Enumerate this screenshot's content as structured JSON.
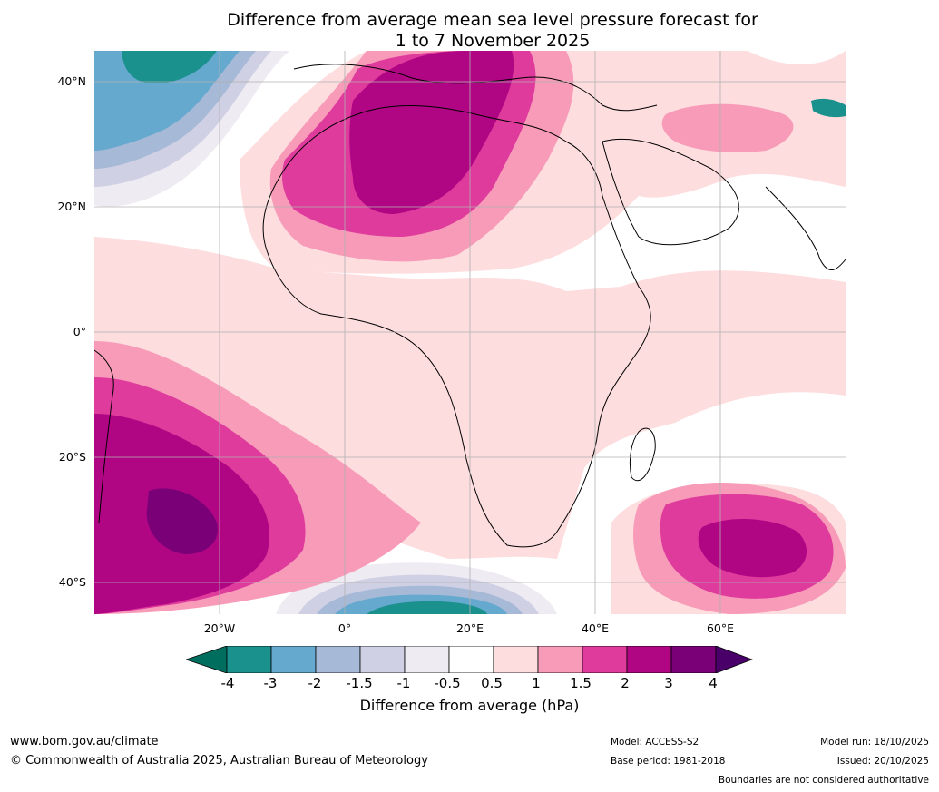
{
  "title": {
    "line1": "Difference from average mean sea level pressure forecast for",
    "line2": "1 to 7 November 2025"
  },
  "map": {
    "lat_labels": [
      "40°N",
      "20°N",
      "0°",
      "20°S",
      "40°S"
    ],
    "lon_labels": [
      "20°W",
      "0°",
      "20°E",
      "40°E",
      "60°E"
    ],
    "lat_range": [
      -45,
      45
    ],
    "lon_range": [
      -40,
      80
    ]
  },
  "colorbar": {
    "ticks": [
      "-4",
      "-3",
      "-2",
      "-1.5",
      "-1",
      "-0.5",
      "0.5",
      "1",
      "1.5",
      "2",
      "3",
      "4"
    ],
    "colors": {
      "below": "#006e5f",
      "bins": [
        "#1b918e",
        "#65a9cf",
        "#a6b9d7",
        "#cfd0e4",
        "#efebf2",
        "#ffffff",
        "#fdddde",
        "#f79bb9",
        "#df3b9c",
        "#b10684",
        "#7a0077"
      ],
      "above": "#490069"
    },
    "label": "Difference from average (hPa)"
  },
  "footer": {
    "website": "www.bom.gov.au/climate",
    "copyright": "© Commonwealth of Australia 2025, Australian Bureau of Meteorology",
    "model": "Model: ACCESS-S2",
    "base_period": "Base period: 1981-2018",
    "model_run": "Model run: 18/10/2025",
    "issued": "Issued: 20/10/2025",
    "disclaimer": "Boundaries are not considered authoritative"
  }
}
